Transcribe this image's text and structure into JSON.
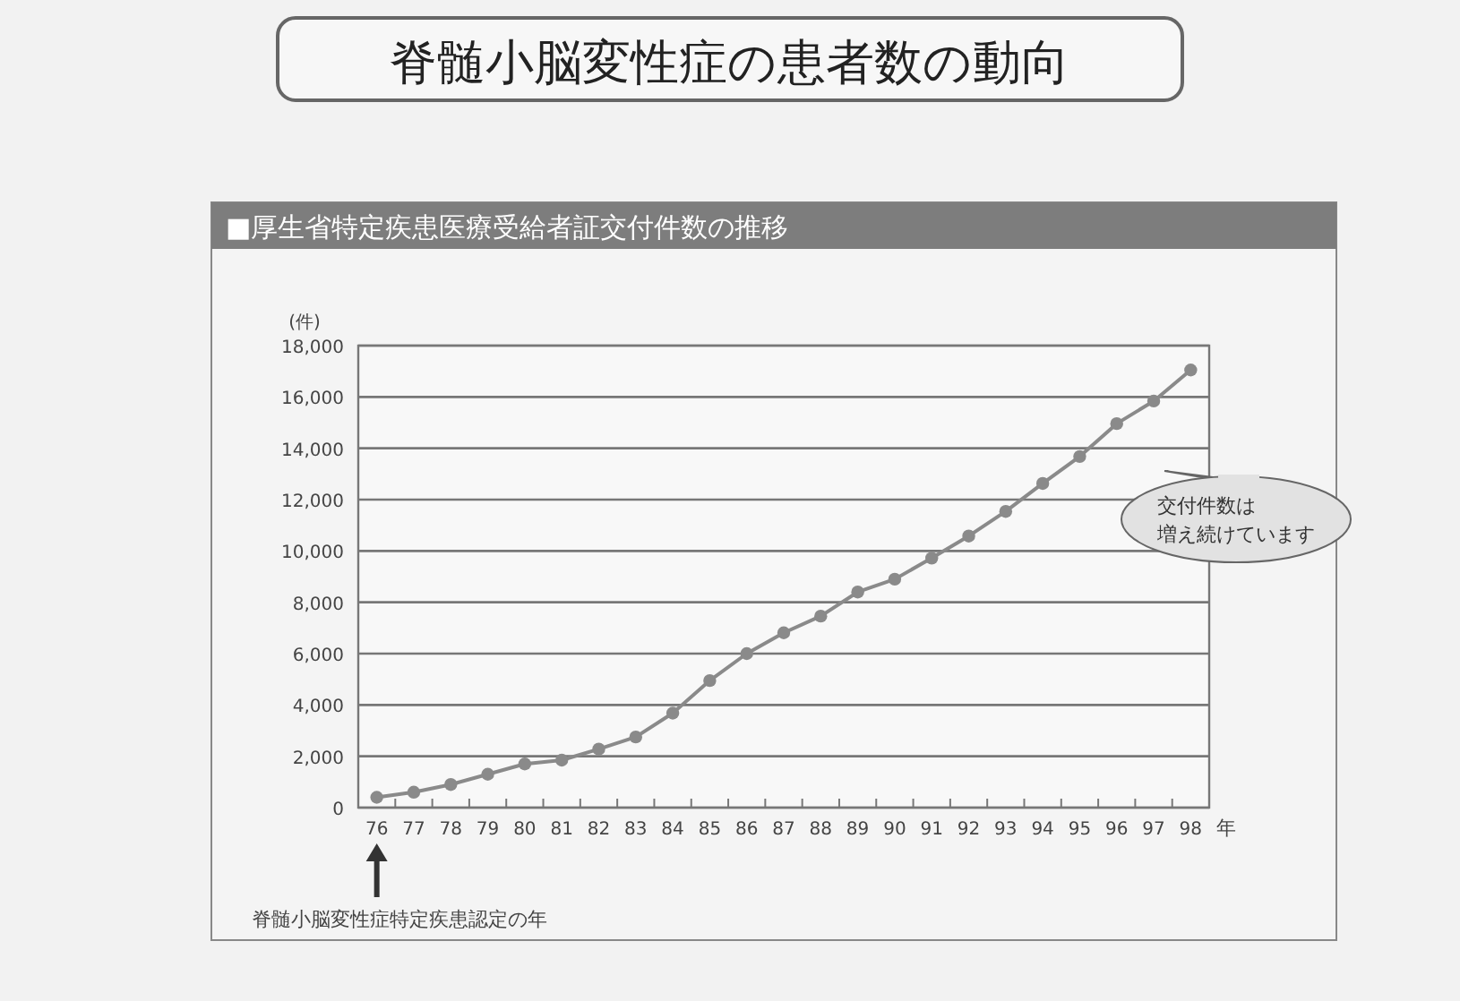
{
  "chart_data": {
    "type": "line",
    "title": "脊髄小脳変性症の患者数の動向",
    "subtitle": "■厚生省特定疾患医療受給者証交付件数の推移",
    "ylabel": "(件)",
    "xlabel": "年",
    "categories": [
      "76",
      "77",
      "78",
      "79",
      "80",
      "81",
      "82",
      "83",
      "84",
      "85",
      "86",
      "87",
      "88",
      "89",
      "90",
      "91",
      "92",
      "93",
      "94",
      "95",
      "96",
      "97",
      "98"
    ],
    "series": [
      {
        "color": "#8a8a8a",
        "values": [
          400,
          600,
          900,
          1300,
          1700,
          1850,
          2280,
          2750,
          3680,
          4950,
          6000,
          6810,
          7460,
          8400,
          8900,
          9720,
          10580,
          11540,
          12630,
          13680,
          14960,
          15840,
          17050
        ]
      }
    ],
    "ylim": [
      0,
      18000
    ],
    "yticks": [
      0,
      {
        "value": 2000,
        "label": "2,000"
      },
      {
        "value": 4000,
        "label": "4,000"
      },
      {
        "value": 6000,
        "label": "6,000"
      },
      {
        "value": 8000,
        "label": "8,000"
      },
      {
        "value": 10000,
        "label": "10,000"
      },
      {
        "value": 12000,
        "label": "12,000"
      },
      {
        "value": 14000,
        "label": "14,000"
      },
      {
        "value": 16000,
        "label": "16,000"
      },
      {
        "value": 18000,
        "label": "18,000"
      }
    ],
    "grid": "y",
    "marker": "circle",
    "line_style": "solid",
    "annotations": [
      "交付件数は",
      "増え続けています",
      "脊髄小脳変性症特定疾患認定の年"
    ]
  }
}
